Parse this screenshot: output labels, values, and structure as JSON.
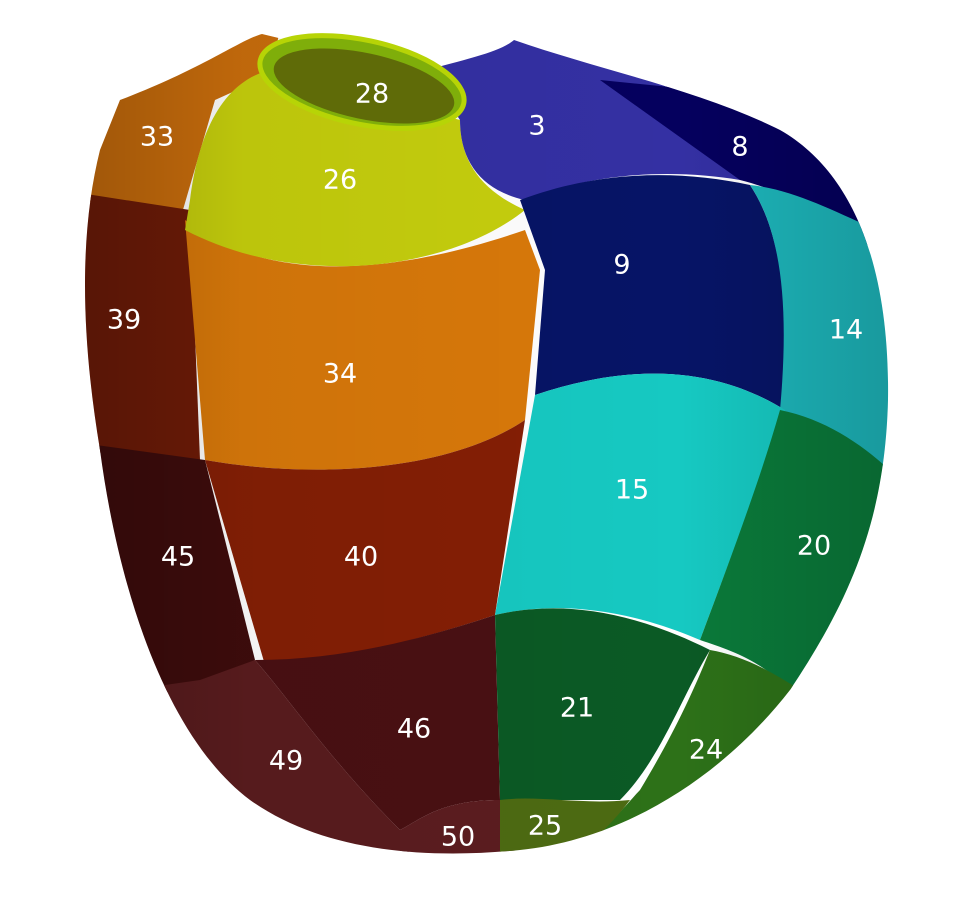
{
  "segments": [
    {
      "id": "3",
      "color": "#3430a3"
    },
    {
      "id": "8",
      "color": "#05005e"
    },
    {
      "id": "9",
      "color": "#061466"
    },
    {
      "id": "14",
      "color": "#1db6bb"
    },
    {
      "id": "15",
      "color": "#16c9c2"
    },
    {
      "id": "20",
      "color": "#0a7a3a"
    },
    {
      "id": "21",
      "color": "#0b5a25"
    },
    {
      "id": "24",
      "color": "#2d7118"
    },
    {
      "id": "25",
      "color": "#4d6b12"
    },
    {
      "id": "26",
      "color": "#7fae0a"
    },
    {
      "id": "28",
      "color": "#c6cf0d"
    },
    {
      "id": "33",
      "color": "#c96d0c"
    },
    {
      "id": "34",
      "color": "#d9790a"
    },
    {
      "id": "39",
      "color": "#6e1b07"
    },
    {
      "id": "40",
      "color": "#851f05"
    },
    {
      "id": "45",
      "color": "#3e0c0c"
    },
    {
      "id": "46",
      "color": "#4a1013"
    },
    {
      "id": "49",
      "color": "#5a1c1e"
    },
    {
      "id": "50",
      "color": "#5c1d20"
    }
  ]
}
